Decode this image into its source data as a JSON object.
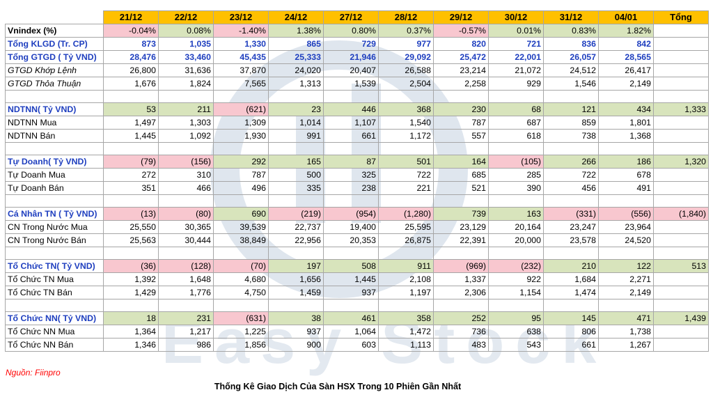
{
  "header": {
    "dates": [
      "21/12",
      "22/12",
      "23/12",
      "24/12",
      "27/12",
      "28/12",
      "29/12",
      "30/12",
      "31/12",
      "04/01"
    ],
    "total_label": "Tổng"
  },
  "rows": {
    "vnindex": {
      "label": "Vnindex (%)",
      "values": [
        "-0.04%",
        "0.08%",
        "-1.40%",
        "1.38%",
        "0.80%",
        "0.37%",
        "-0.57%",
        "0.01%",
        "0.83%",
        "1.82%"
      ],
      "total": ""
    },
    "klgd": {
      "label": "Tổng KLGD (Tr. CP)",
      "values": [
        "873",
        "1,035",
        "1,330",
        "865",
        "729",
        "977",
        "820",
        "721",
        "836",
        "842"
      ],
      "total": ""
    },
    "gtgd": {
      "label": "Tổng GTGD ( Tỷ VND)",
      "values": [
        "28,476",
        "33,460",
        "45,435",
        "25,333",
        "21,946",
        "29,092",
        "25,472",
        "22,001",
        "26,057",
        "28,565"
      ],
      "total": ""
    },
    "khoplenh": {
      "label": "GTGD Khớp Lệnh",
      "values": [
        "26,800",
        "31,636",
        "37,870",
        "24,020",
        "20,407",
        "26,588",
        "23,214",
        "21,072",
        "24,512",
        "26,417"
      ],
      "total": ""
    },
    "thoathuan": {
      "label": "GTGD Thỏa Thuận",
      "values": [
        "1,676",
        "1,824",
        "7,565",
        "1,313",
        "1,539",
        "2,504",
        "2,258",
        "929",
        "1,546",
        "2,149"
      ],
      "total": ""
    },
    "ndtnn": {
      "label": "NDTNN( Tỷ VND)",
      "values": [
        "53",
        "211",
        "(621)",
        "23",
        "446",
        "368",
        "230",
        "68",
        "121",
        "434"
      ],
      "total": "1,333"
    },
    "ndtnn_mua": {
      "label": "NDTNN Mua",
      "values": [
        "1,497",
        "1,303",
        "1,309",
        "1,014",
        "1,107",
        "1,540",
        "787",
        "687",
        "859",
        "1,801"
      ],
      "total": ""
    },
    "ndtnn_ban": {
      "label": "NDTNN Bán",
      "values": [
        "1,445",
        "1,092",
        "1,930",
        "991",
        "661",
        "1,172",
        "557",
        "618",
        "738",
        "1,368"
      ],
      "total": ""
    },
    "tudoanh": {
      "label": "Tự Doanh( Tỷ VND)",
      "values": [
        "(79)",
        "(156)",
        "292",
        "165",
        "87",
        "501",
        "164",
        "(105)",
        "266",
        "186"
      ],
      "total": "1,320"
    },
    "tudoanh_mua": {
      "label": "Tự Doanh Mua",
      "values": [
        "272",
        "310",
        "787",
        "500",
        "325",
        "722",
        "685",
        "285",
        "722",
        "678"
      ],
      "total": ""
    },
    "tudoanh_ban": {
      "label": "Tự Doanh Bán",
      "values": [
        "351",
        "466",
        "496",
        "335",
        "238",
        "221",
        "521",
        "390",
        "456",
        "491"
      ],
      "total": ""
    },
    "canhan": {
      "label": "Cá Nhân TN ( Tỷ VND)",
      "values": [
        "(13)",
        "(80)",
        "690",
        "(219)",
        "(954)",
        "(1,280)",
        "739",
        "163",
        "(331)",
        "(556)"
      ],
      "total": "(1,840)"
    },
    "canhan_mua": {
      "label": "CN Trong Nước Mua",
      "values": [
        "25,550",
        "30,365",
        "39,539",
        "22,737",
        "19,400",
        "25,595",
        "23,129",
        "20,164",
        "23,247",
        "23,964"
      ],
      "total": ""
    },
    "canhan_ban": {
      "label": "CN Trong Nước Bán",
      "values": [
        "25,563",
        "30,444",
        "38,849",
        "22,956",
        "20,353",
        "26,875",
        "22,391",
        "20,000",
        "23,578",
        "24,520"
      ],
      "total": ""
    },
    "tochuc": {
      "label": "Tổ Chức TN( Tỷ VND)",
      "values": [
        "(36)",
        "(128)",
        "(70)",
        "197",
        "508",
        "911",
        "(969)",
        "(232)",
        "210",
        "122"
      ],
      "total": "513"
    },
    "tochuc_mua": {
      "label": "Tổ Chức TN Mua",
      "values": [
        "1,392",
        "1,648",
        "4,680",
        "1,656",
        "1,445",
        "2,108",
        "1,337",
        "922",
        "1,684",
        "2,271"
      ],
      "total": ""
    },
    "tochuc_ban": {
      "label": "Tổ Chức TN Bán",
      "values": [
        "1,429",
        "1,776",
        "4,750",
        "1,459",
        "937",
        "1,197",
        "2,306",
        "1,154",
        "1,474",
        "2,149"
      ],
      "total": ""
    },
    "tochucnn": {
      "label": "Tổ Chức NN( Tỷ VND)",
      "values": [
        "18",
        "231",
        "(631)",
        "38",
        "461",
        "358",
        "252",
        "95",
        "145",
        "471"
      ],
      "total": "1,439"
    },
    "tochucnn_mua": {
      "label": "Tổ Chức NN Mua",
      "values": [
        "1,364",
        "1,217",
        "1,225",
        "937",
        "1,064",
        "1,472",
        "736",
        "638",
        "806",
        "1,738"
      ],
      "total": ""
    },
    "tochucnn_ban": {
      "label": "Tổ Chức NN Bán",
      "values": [
        "1,346",
        "986",
        "1,856",
        "900",
        "603",
        "1,113",
        "483",
        "543",
        "661",
        "1,267"
      ],
      "total": ""
    }
  },
  "colors": {
    "positive_fill": "#d8e4bc",
    "negative_fill": "#f8c7cf",
    "header_fill": "#ffc000",
    "blue_text": "#1f3fbf"
  },
  "watermark": "Easy Stock",
  "source": "Nguồn: Fiinpro",
  "caption": "Thống Kê Giao Dịch Của Sàn HSX Trong 10 Phiên Gần Nhất"
}
